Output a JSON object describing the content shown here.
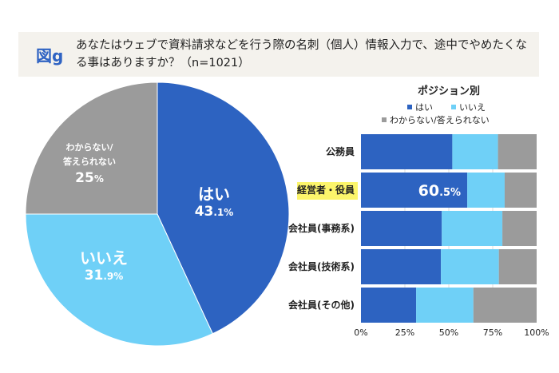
{
  "header": {
    "figure_label": "図g",
    "question": "あなたはウェブで資料請求などを行う際の名刺（個人）情報入力で、途中でやめたくなる事はありますか？（n=1021）"
  },
  "colors": {
    "yes": "#2d63c1",
    "no": "#6fd0f7",
    "unknown": "#9b9b9b",
    "highlight": "#fcf56b"
  },
  "chart_data": [
    {
      "type": "pie",
      "title": "",
      "slices": [
        {
          "label": "はい",
          "value": 43.1,
          "int": "43",
          "dec": ".1%"
        },
        {
          "label": "いいえ",
          "value": 31.9,
          "int": "31",
          "dec": ".9%"
        },
        {
          "label": "わからない/答えられない",
          "label_lines": [
            "わからない/",
            "答えられない"
          ],
          "value": 25,
          "int": "25",
          "dec": "%"
        }
      ]
    },
    {
      "type": "bar",
      "stacked": true,
      "orientation": "horizontal",
      "title": "ポジション別",
      "legend": [
        "はい",
        "いいえ",
        "わからない/答えられない"
      ],
      "legend_placement": "top",
      "categories": [
        "公務員",
        "経営者・役員",
        "会社員(事務系)",
        "会社員(技術系)",
        "会社員(その他)"
      ],
      "highlight_category": "経営者・役員",
      "series": [
        {
          "name": "はい",
          "values": [
            52,
            60.5,
            46,
            45.5,
            31.4
          ]
        },
        {
          "name": "いいえ",
          "values": [
            26,
            21.3,
            34.5,
            33,
            32.6
          ]
        },
        {
          "name": "わからない/答えられない",
          "values": [
            22,
            18.2,
            19.5,
            21.5,
            36
          ]
        }
      ],
      "data_label": {
        "category": "経営者・役員",
        "int": "60",
        "dec": ".5%"
      },
      "xlim": [
        0,
        100
      ],
      "xticks": [
        "0%",
        "25%",
        "50%",
        "75%",
        "100%"
      ]
    }
  ]
}
